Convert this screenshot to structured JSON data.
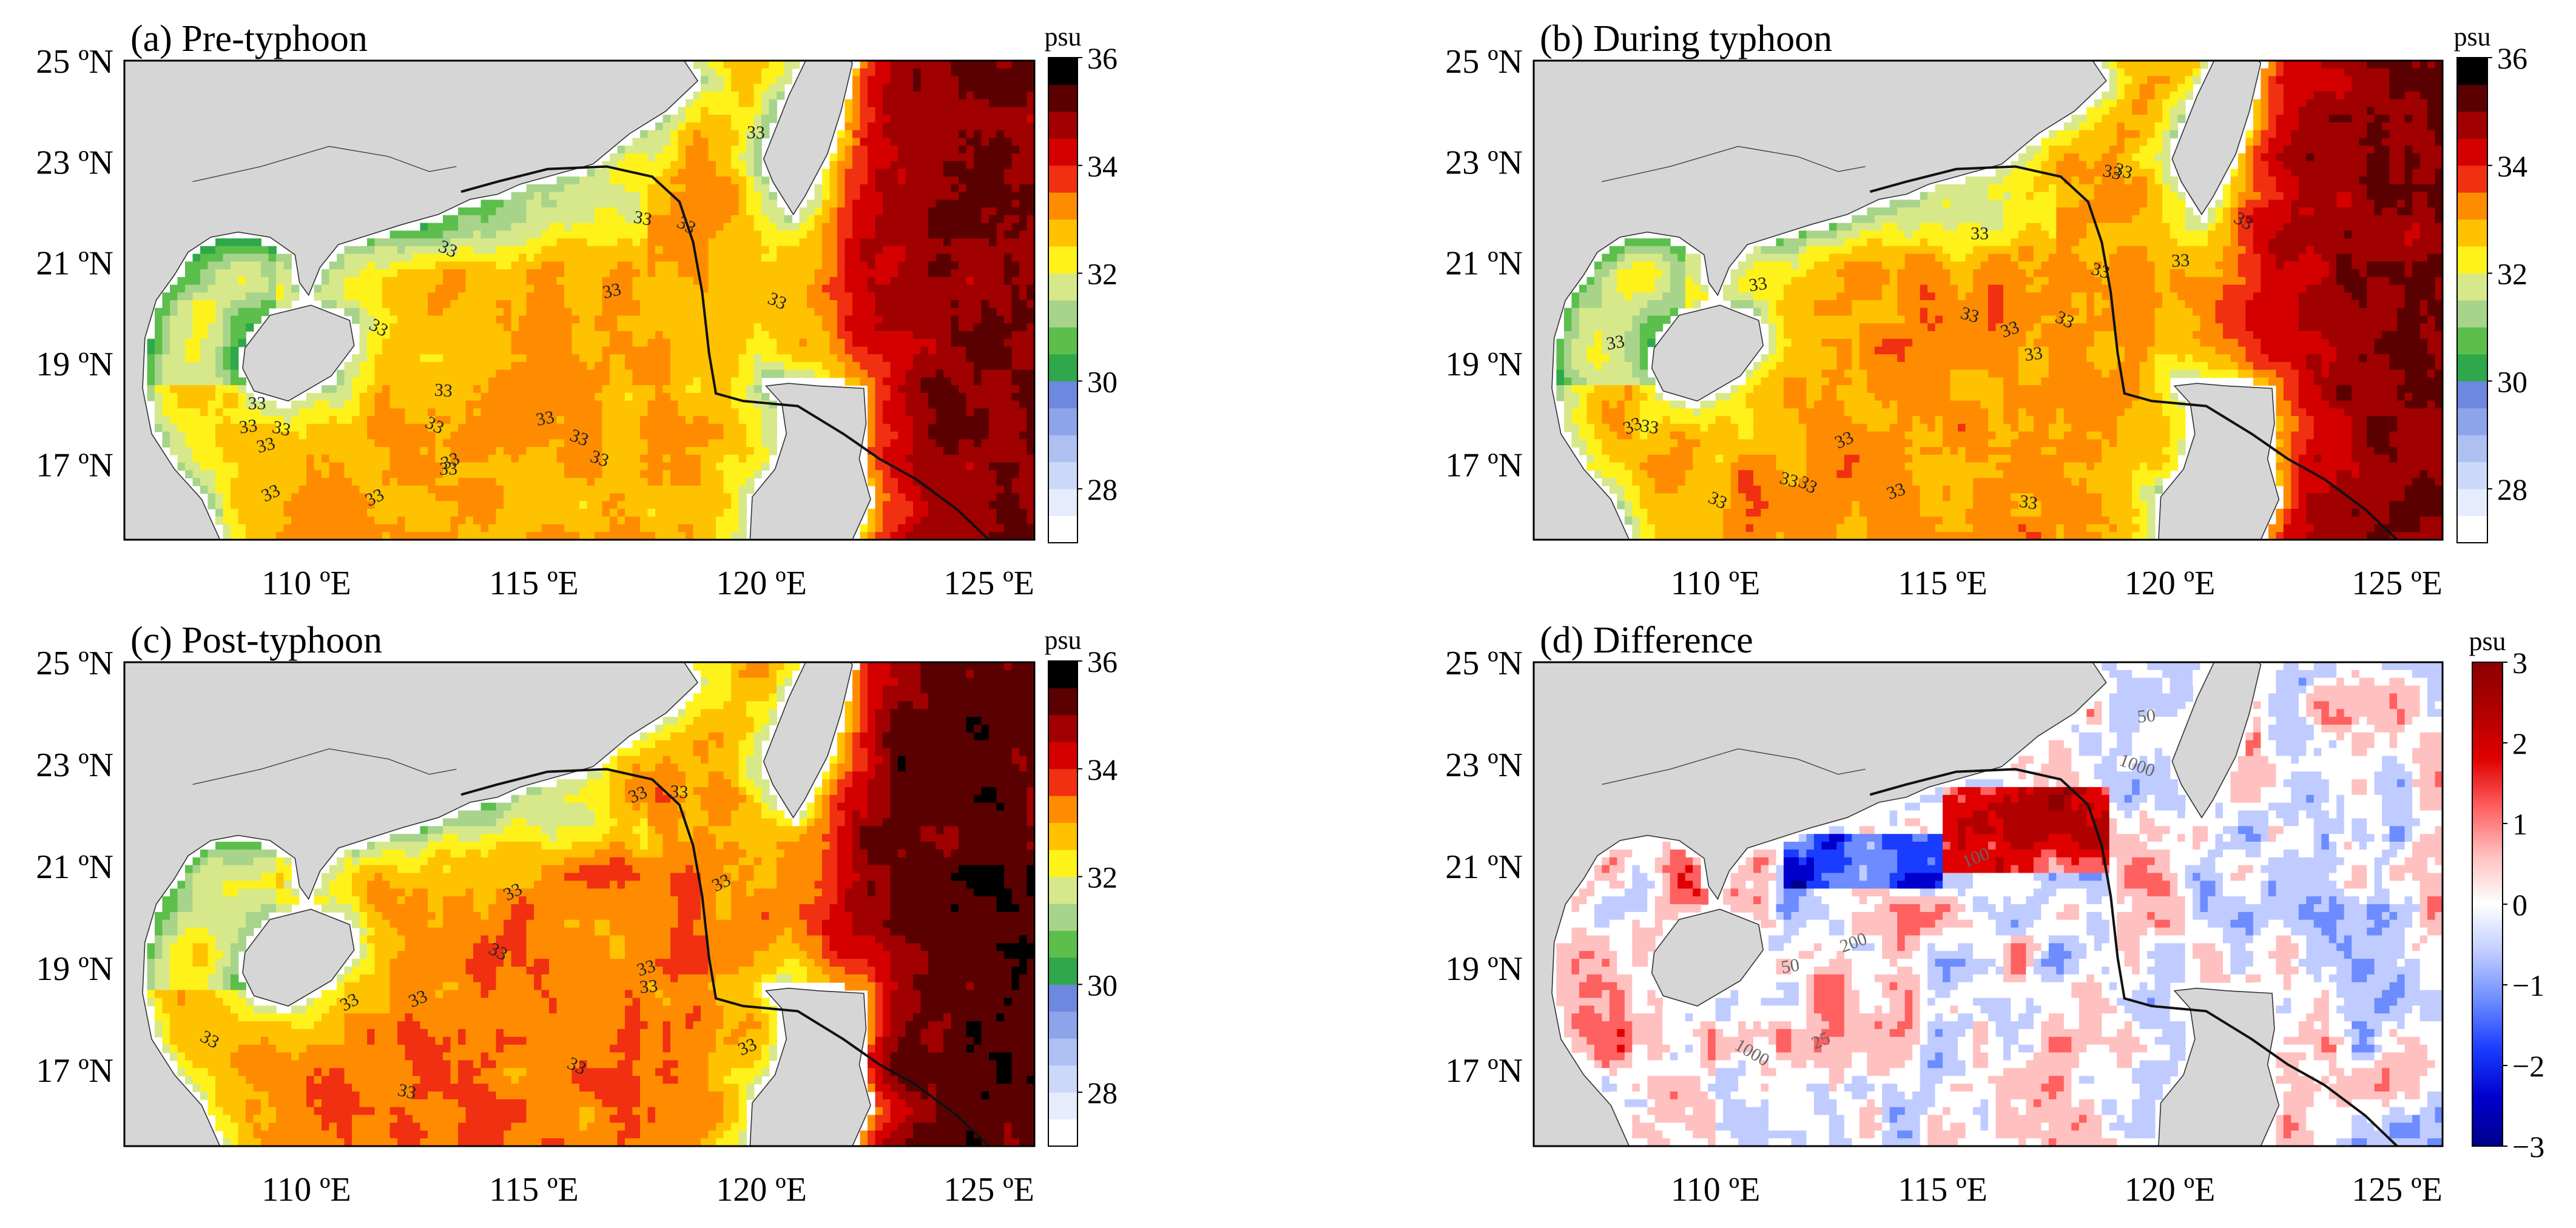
{
  "figure": {
    "panels": [
      {
        "id": "a",
        "title": "(a) Pre-typhoon",
        "variant": "pre",
        "colorbar": {
          "unit": "psu",
          "tick_labels": [
            "36",
            "34",
            "32",
            "30",
            "28"
          ],
          "range": [
            27,
            36
          ]
        },
        "contour_labels": [
          "33",
          "33",
          "33",
          "33",
          "33",
          "33",
          "33",
          "33",
          "33",
          "33",
          "33",
          "33",
          "33",
          "33",
          "33",
          "33",
          "33",
          "33",
          "33",
          "33"
        ]
      },
      {
        "id": "b",
        "title": "(b) During typhoon",
        "variant": "during",
        "colorbar": {
          "unit": "psu",
          "tick_labels": [
            "36",
            "34",
            "32",
            "30",
            "28"
          ],
          "range": [
            27,
            36
          ]
        },
        "contour_labels": [
          "33",
          "33",
          "33",
          "33",
          "33",
          "33",
          "33",
          "33",
          "33",
          "33",
          "33",
          "33",
          "33",
          "33",
          "33",
          "33",
          "33",
          "33",
          "33",
          "33"
        ]
      },
      {
        "id": "c",
        "title": "(c) Post-typhoon",
        "variant": "post",
        "colorbar": {
          "unit": "psu",
          "tick_labels": [
            "36",
            "34",
            "32",
            "30",
            "28"
          ],
          "range": [
            27,
            36
          ]
        },
        "contour_labels": [
          "33",
          "33",
          "33",
          "33",
          "33",
          "33",
          "33",
          "33",
          "33",
          "33",
          "33",
          "33",
          "33"
        ]
      },
      {
        "id": "d",
        "title": "(d) Difference",
        "variant": "diff",
        "colorbar": {
          "unit": "psu",
          "tick_labels": [
            "3",
            "2",
            "1",
            "0",
            "−1",
            "−2",
            "−3"
          ],
          "range": [
            -3,
            3
          ]
        },
        "contour_labels": [
          "50",
          "50",
          "100",
          "200",
          "1000",
          "1000",
          "25"
        ]
      }
    ],
    "lat_labels": [
      "25 ºN",
      "23 ºN",
      "21 ºN",
      "19 ºN",
      "17 ºN"
    ],
    "lon_labels": [
      "110 ºE",
      "115 ºE",
      "120 ºE",
      "125 ºE"
    ],
    "lat_values": [
      25,
      23,
      21,
      19,
      17
    ],
    "lon_values": [
      110,
      115,
      120,
      125
    ],
    "map_extent": {
      "lon": [
        106,
        126
      ],
      "lat": [
        15.5,
        25
      ]
    },
    "colors": {
      "land": "#d6d6d6",
      "coast_line": "#333333",
      "track": "#111111",
      "salinity_scale": [
        "#ffffff",
        "#e6ecfc",
        "#ccd8f8",
        "#aebff2",
        "#8da4ea",
        "#6e87df",
        "#2ea84a",
        "#5cbf4c",
        "#a7d48a",
        "#d6e88a",
        "#fff21a",
        "#ffc200",
        "#ff8c00",
        "#f03010",
        "#d40000",
        "#a00000",
        "#5a0000",
        "#000000"
      ],
      "diff_scale": [
        "#00008b",
        "#0000cd",
        "#1a3cff",
        "#6c8cff",
        "#c0ccff",
        "#ffffff",
        "#ffc0c0",
        "#ff6060",
        "#e00000",
        "#b00000",
        "#8b0000"
      ]
    }
  }
}
